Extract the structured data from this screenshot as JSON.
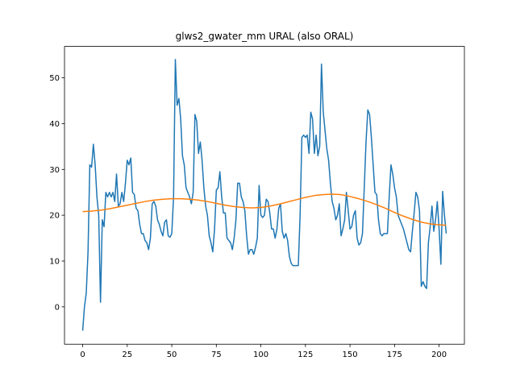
{
  "chart_data": {
    "type": "line",
    "title": "glws2_gwater_mm URAL (also ORAL)",
    "xlim": [
      -10.2,
      214.2
    ],
    "ylim": [
      -8.16,
      56.86
    ],
    "xticks": [
      0,
      25,
      50,
      75,
      100,
      125,
      150,
      175,
      200
    ],
    "yticks": [
      0,
      10,
      20,
      30,
      40,
      50
    ],
    "series": [
      {
        "color": "#1f77b4",
        "x": [
          0,
          1,
          2,
          3,
          4,
          5,
          6,
          7,
          8,
          9,
          10,
          11,
          12,
          13,
          14,
          15,
          16,
          17,
          18,
          19,
          20,
          21,
          22,
          23,
          24,
          25,
          26,
          27,
          28,
          29,
          30,
          31,
          32,
          33,
          34,
          35,
          36,
          37,
          38,
          39,
          40,
          41,
          42,
          43,
          44,
          45,
          46,
          47,
          48,
          49,
          50,
          51,
          52,
          53,
          54,
          55,
          56,
          57,
          58,
          59,
          60,
          61,
          62,
          63,
          64,
          65,
          66,
          67,
          68,
          69,
          70,
          71,
          72,
          73,
          74,
          75,
          76,
          77,
          78,
          79,
          80,
          81,
          82,
          83,
          84,
          85,
          86,
          87,
          88,
          89,
          90,
          91,
          92,
          93,
          94,
          95,
          96,
          97,
          98,
          99,
          100,
          101,
          102,
          103,
          104,
          105,
          106,
          107,
          108,
          109,
          110,
          111,
          112,
          113,
          114,
          115,
          116,
          117,
          118,
          119,
          120,
          121,
          122,
          123,
          124,
          125,
          126,
          127,
          128,
          129,
          130,
          131,
          132,
          133,
          134,
          135,
          136,
          137,
          138,
          139,
          140,
          141,
          142,
          143,
          144,
          145,
          146,
          147,
          148,
          149,
          150,
          151,
          152,
          153,
          154,
          155,
          156,
          157,
          158,
          159,
          160,
          161,
          162,
          163,
          164,
          165,
          166,
          167,
          168,
          169,
          170,
          171,
          172,
          173,
          174,
          175,
          176,
          177,
          178,
          179,
          180,
          181,
          182,
          183,
          184,
          185,
          186,
          187,
          188,
          189,
          190,
          191,
          192,
          193,
          194,
          195,
          196,
          197,
          198,
          199,
          200,
          201,
          202,
          203,
          204
        ],
        "values": [
          -5.2,
          0,
          3,
          12,
          31,
          30.5,
          35.5,
          31,
          24,
          20,
          1,
          19,
          17.5,
          25,
          24,
          25,
          24,
          25,
          23,
          29,
          22,
          22.5,
          25,
          23,
          27,
          32,
          31,
          32.5,
          25,
          24.5,
          21.5,
          21,
          18,
          16,
          16,
          14.5,
          14,
          12.5,
          15,
          22.5,
          23,
          22,
          19,
          18,
          16.5,
          15.5,
          18.5,
          19,
          15.5,
          15.2,
          16,
          24,
          54,
          44,
          45.5,
          41,
          33,
          31,
          26,
          25,
          24,
          22.5,
          25,
          42,
          40.5,
          33.5,
          36,
          32,
          26,
          22,
          20,
          15.5,
          14,
          12,
          17,
          25.5,
          26,
          29.5,
          24,
          20.5,
          20.5,
          15,
          14.5,
          14,
          12.5,
          15,
          19,
          27,
          27,
          24,
          23,
          21,
          15.5,
          11.5,
          12.5,
          12.5,
          11.5,
          13,
          15,
          26.5,
          20,
          19.5,
          20,
          23.5,
          23,
          20.5,
          17,
          17,
          15,
          17,
          21.5,
          22.5,
          16.5,
          15,
          16,
          14.5,
          11,
          9.5,
          9,
          9,
          9,
          9,
          20,
          37,
          37.5,
          37,
          37.5,
          33.5,
          42.5,
          41,
          33.5,
          37.5,
          33,
          35,
          53,
          42.5,
          38.5,
          34.5,
          32,
          27,
          23,
          21.5,
          19,
          20,
          22.5,
          15.5,
          17,
          19,
          25,
          21,
          17,
          17.5,
          20,
          21,
          15,
          13.5,
          14,
          16,
          26,
          36,
          43,
          42,
          37,
          31,
          25,
          24.5,
          19,
          16,
          15.5,
          16,
          16,
          16,
          24,
          31,
          29,
          26,
          24,
          20,
          19,
          18,
          17,
          15.5,
          14,
          12.5,
          12,
          16.5,
          20.5,
          25,
          24,
          21,
          4.5,
          5.5,
          4.5,
          4,
          14,
          17.5,
          22,
          16.5,
          19,
          23,
          17,
          9.3,
          25.2,
          20,
          16
        ]
      },
      {
        "color": "#ff7f0e",
        "x": [
          0,
          5,
          10,
          15,
          20,
          25,
          30,
          35,
          40,
          45,
          50,
          55,
          60,
          65,
          70,
          75,
          80,
          85,
          90,
          95,
          100,
          105,
          110,
          115,
          120,
          125,
          130,
          135,
          140,
          145,
          150,
          155,
          160,
          165,
          170,
          175,
          180,
          185,
          190,
          195,
          200,
          204
        ],
        "values": [
          20.8,
          20.9,
          21.1,
          21.4,
          21.8,
          22.2,
          22.6,
          23.0,
          23.3,
          23.5,
          23.6,
          23.6,
          23.5,
          23.3,
          23.0,
          22.6,
          22.2,
          21.9,
          21.7,
          21.6,
          21.7,
          22.0,
          22.4,
          22.9,
          23.4,
          23.9,
          24.3,
          24.5,
          24.6,
          24.5,
          24.1,
          23.6,
          23.0,
          22.3,
          21.5,
          20.6,
          19.8,
          19.1,
          18.5,
          18.1,
          17.9,
          17.8
        ]
      }
    ]
  }
}
